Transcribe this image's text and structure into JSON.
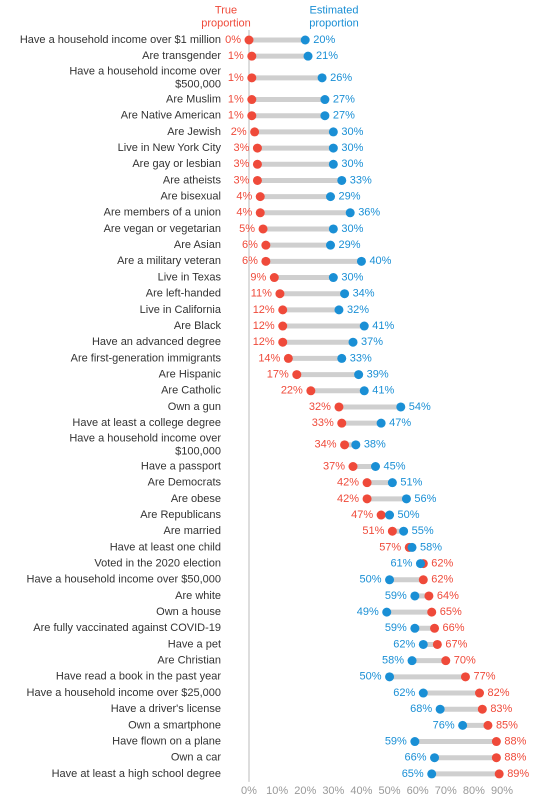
{
  "chart_data": {
    "type": "dumbbell",
    "categories": [
      "Have a household income over $1 million",
      "Are transgender",
      "Have a household income over\n$500,000",
      "Are Muslim",
      "Are Native American",
      "Are Jewish",
      "Live in New York City",
      "Are gay or lesbian",
      "Are atheists",
      "Are bisexual",
      "Are members of a union",
      "Are vegan or vegetarian",
      "Are Asian",
      "Are a military veteran",
      "Live in Texas",
      "Are left-handed",
      "Live in California",
      "Are Black",
      "Have an advanced degree",
      "Are first-generation immigrants",
      "Are Hispanic",
      "Are Catholic",
      "Own a gun",
      "Have at least a college degree",
      "Have a household income over\n$100,000",
      "Have a passport",
      "Are Democrats",
      "Are obese",
      "Are Republicans",
      "Are married",
      "Have at least one child",
      "Voted in the 2020 election",
      "Have a household income over $50,000",
      "Are white",
      "Own a house",
      "Are fully vaccinated against COVID-19",
      "Have a pet",
      "Are Christian",
      "Have read a book in the past year",
      "Have a household income over $25,000",
      "Have a driver's license",
      "Own a smartphone",
      "Have flown on a plane",
      "Own a car",
      "Have at least a high school degree"
    ],
    "series": [
      {
        "name": "True proportion",
        "color": "#ef4a3a",
        "values": [
          0,
          1,
          1,
          1,
          1,
          2,
          3,
          3,
          3,
          4,
          4,
          5,
          6,
          6,
          9,
          11,
          12,
          12,
          12,
          14,
          17,
          22,
          32,
          33,
          34,
          37,
          42,
          42,
          47,
          51,
          57,
          62,
          62,
          64,
          65,
          66,
          67,
          70,
          77,
          82,
          83,
          85,
          88,
          88,
          89
        ],
        "value_labels": [
          "0%",
          "1%",
          "1%",
          "1%",
          "1%",
          "2%",
          "3%",
          "3%",
          "3%",
          "4%",
          "4%",
          "5%",
          "6%",
          "6%",
          "9%",
          "11%",
          "12%",
          "12%",
          "12%",
          "14%",
          "17%",
          "22%",
          "32%",
          "33%",
          "34%",
          "37%",
          "42%",
          "42%",
          "47%",
          "51%",
          "57%",
          "62%",
          "62%",
          "64%",
          "65%",
          "66%",
          "67%",
          "70%",
          "77%",
          "82%",
          "83%",
          "85%",
          "88%",
          "88%",
          "89%"
        ]
      },
      {
        "name": "Estimated proportion",
        "color": "#1a8fd5",
        "values": [
          20,
          21,
          26,
          27,
          27,
          30,
          30,
          30,
          33,
          29,
          36,
          30,
          29,
          40,
          30,
          34,
          32,
          41,
          37,
          33,
          39,
          41,
          54,
          47,
          38,
          45,
          51,
          56,
          50,
          55,
          58,
          61,
          50,
          59,
          49,
          59,
          62,
          58,
          50,
          62,
          68,
          76,
          59,
          66,
          65
        ],
        "value_labels": [
          "20%",
          "21%",
          "26%",
          "27%",
          "27%",
          "30%",
          "30%",
          "30%",
          "33%",
          "29%",
          "36%",
          "30%",
          "29%",
          "40%",
          "30%",
          "34%",
          "32%",
          "41%",
          "37%",
          "33%",
          "39%",
          "41%",
          "54%",
          "47%",
          "38%",
          "45%",
          "51%",
          "56%",
          "50%",
          "55%",
          "58%",
          "61%",
          "50%",
          "59%",
          "49%",
          "59%",
          "62%",
          "58%",
          "50%",
          "62%",
          "68%",
          "76%",
          "59%",
          "66%",
          "65%"
        ]
      }
    ],
    "xlim": [
      0,
      90
    ],
    "xticks": [
      {
        "value": 0,
        "label": "0%"
      },
      {
        "value": 10,
        "label": "10%"
      },
      {
        "value": 20,
        "label": "20%"
      },
      {
        "value": 30,
        "label": "30%"
      },
      {
        "value": 40,
        "label": "40%"
      },
      {
        "value": 50,
        "label": "50%"
      },
      {
        "value": 60,
        "label": "60%"
      },
      {
        "value": 70,
        "label": "70%"
      },
      {
        "value": 80,
        "label": "80%"
      },
      {
        "value": 90,
        "label": "90%"
      }
    ]
  }
}
